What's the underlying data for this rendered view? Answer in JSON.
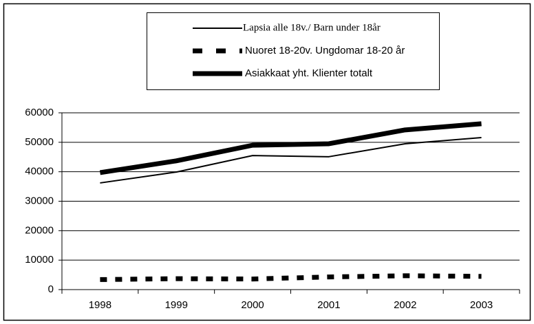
{
  "chart_data": {
    "type": "line",
    "categories": [
      "1998",
      "1999",
      "2000",
      "2001",
      "2002",
      "2003"
    ],
    "series": [
      {
        "name": "Lapsia alle 18v./ Barn under 18år",
        "color": "#000000",
        "width": 2,
        "dash": "none",
        "values": [
          36200,
          39900,
          45500,
          45100,
          49500,
          51600
        ]
      },
      {
        "name": "Nuoret 18-20v. Ungdomar 18-20 år",
        "color": "#000000",
        "width": 7,
        "dash": "10 12",
        "values": [
          3400,
          3700,
          3600,
          4300,
          4700,
          4500
        ]
      },
      {
        "name": "Asiakkaat yht. Klienter totalt",
        "color": "#000000",
        "width": 7,
        "dash": "none",
        "values": [
          39700,
          43700,
          49000,
          49500,
          54200,
          56300
        ]
      }
    ],
    "ylim": [
      0,
      60000
    ],
    "yticks": [
      0,
      10000,
      20000,
      30000,
      40000,
      50000,
      60000
    ],
    "grid": true
  }
}
